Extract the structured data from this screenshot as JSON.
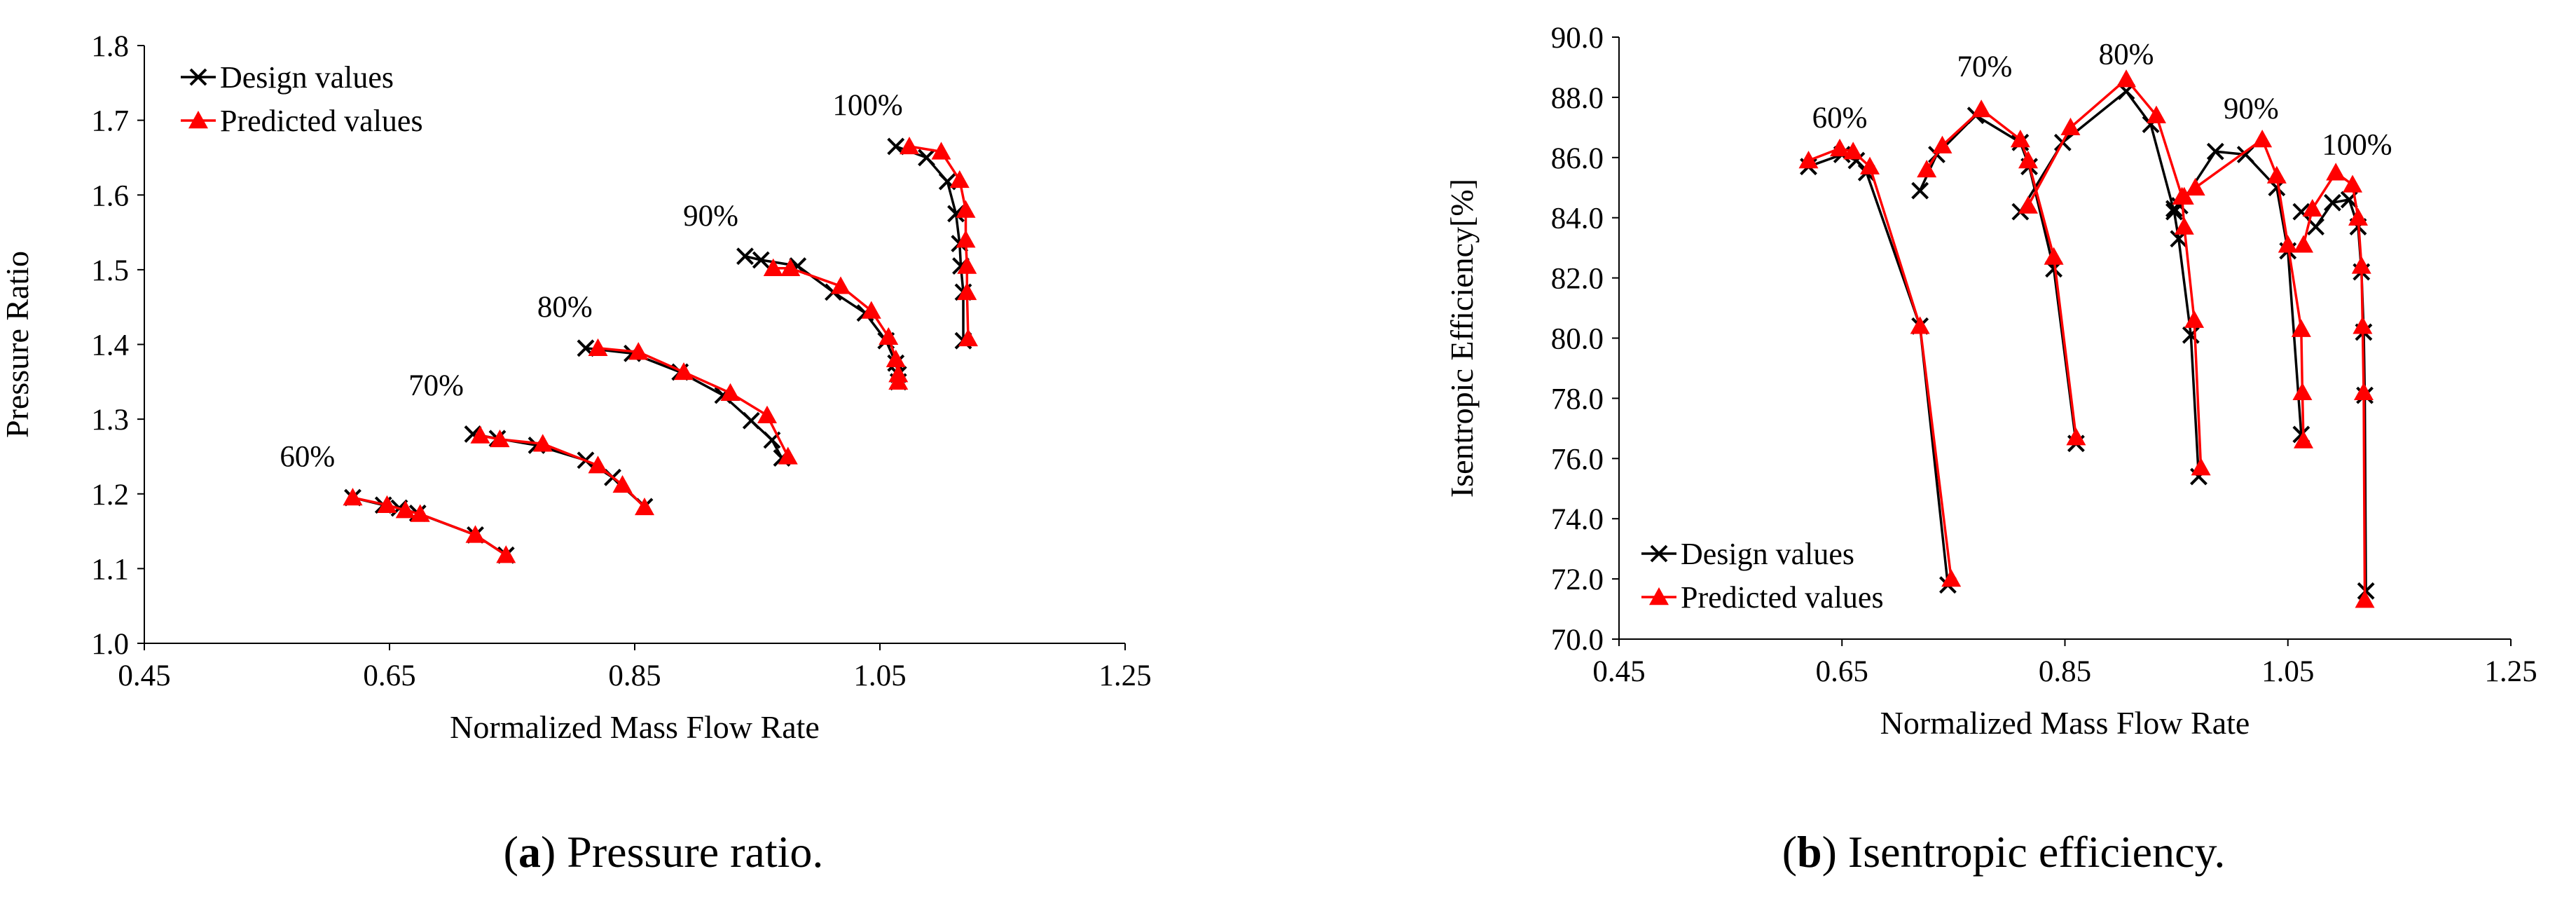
{
  "chart_data": [
    {
      "type": "line",
      "panel": "a",
      "caption_letter": "a",
      "caption_text": " Pressure ratio.",
      "xlabel": "Normalized Mass Flow Rate",
      "ylabel": "Pressure Ratio",
      "xlim": [
        0.45,
        1.25
      ],
      "ylim": [
        1.0,
        1.8
      ],
      "xticks": [
        "0.45",
        "0.65",
        "0.85",
        "1.05",
        "1.25"
      ],
      "yticks": [
        "1.0",
        "1.1",
        "1.2",
        "1.3",
        "1.4",
        "1.5",
        "1.6",
        "1.7",
        "1.8"
      ],
      "legend": [
        "Design values",
        "Predicted values"
      ],
      "speed_labels": [
        {
          "text": "60%",
          "x": 0.583,
          "y": 1.237
        },
        {
          "text": "70%",
          "x": 0.688,
          "y": 1.332
        },
        {
          "text": "80%",
          "x": 0.793,
          "y": 1.437
        },
        {
          "text": "90%",
          "x": 0.912,
          "y": 1.559
        },
        {
          "text": "100%",
          "x": 1.04,
          "y": 1.707
        }
      ],
      "series": [
        {
          "name": "Design values",
          "marker": "x",
          "color": "#000000",
          "lines": [
            [
              [
                0.62,
                1.195
              ],
              [
                0.645,
                1.185
              ],
              [
                0.658,
                1.181
              ],
              [
                0.673,
                1.174
              ],
              [
                0.72,
                1.145
              ],
              [
                0.745,
                1.118
              ]
            ],
            [
              [
                0.718,
                1.28
              ],
              [
                0.738,
                1.274
              ],
              [
                0.77,
                1.265
              ],
              [
                0.81,
                1.245
              ],
              [
                0.832,
                1.222
              ],
              [
                0.858,
                1.183
              ]
            ],
            [
              [
                0.81,
                1.395
              ],
              [
                0.848,
                1.388
              ],
              [
                0.887,
                1.363
              ],
              [
                0.922,
                1.332
              ],
              [
                0.945,
                1.298
              ],
              [
                0.962,
                1.272
              ],
              [
                0.97,
                1.248
              ]
            ],
            [
              [
                0.94,
                1.518
              ],
              [
                0.953,
                1.513
              ],
              [
                0.983,
                1.505
              ],
              [
                1.012,
                1.47
              ],
              [
                1.038,
                1.442
              ],
              [
                1.055,
                1.405
              ],
              [
                1.063,
                1.375
              ],
              [
                1.065,
                1.36
              ],
              [
                1.065,
                1.35
              ]
            ],
            [
              [
                1.063,
                1.665
              ],
              [
                1.088,
                1.65
              ],
              [
                1.105,
                1.618
              ],
              [
                1.112,
                1.575
              ],
              [
                1.115,
                1.535
              ],
              [
                1.116,
                1.505
              ],
              [
                1.118,
                1.47
              ],
              [
                1.118,
                1.405
              ]
            ]
          ]
        },
        {
          "name": "Predicted values",
          "marker": "triangle",
          "color": "#ff0000",
          "lines": [
            [
              [
                0.62,
                1.195
              ],
              [
                0.648,
                1.185
              ],
              [
                0.663,
                1.178
              ],
              [
                0.675,
                1.173
              ],
              [
                0.72,
                1.145
              ],
              [
                0.745,
                1.118
              ]
            ],
            [
              [
                0.724,
                1.278
              ],
              [
                0.74,
                1.273
              ],
              [
                0.775,
                1.267
              ],
              [
                0.82,
                1.238
              ],
              [
                0.84,
                1.212
              ],
              [
                0.858,
                1.182
              ]
            ],
            [
              [
                0.82,
                1.395
              ],
              [
                0.853,
                1.39
              ],
              [
                0.89,
                1.363
              ],
              [
                0.928,
                1.335
              ],
              [
                0.958,
                1.305
              ],
              [
                0.975,
                1.25
              ]
            ],
            [
              [
                0.963,
                1.502
              ],
              [
                0.977,
                1.502
              ],
              [
                1.018,
                1.478
              ],
              [
                1.043,
                1.445
              ],
              [
                1.057,
                1.41
              ],
              [
                1.063,
                1.38
              ],
              [
                1.065,
                1.36
              ],
              [
                1.065,
                1.35
              ]
            ],
            [
              [
                1.074,
                1.665
              ],
              [
                1.1,
                1.658
              ],
              [
                1.115,
                1.62
              ],
              [
                1.12,
                1.58
              ],
              [
                1.12,
                1.54
              ],
              [
                1.121,
                1.505
              ],
              [
                1.121,
                1.47
              ],
              [
                1.122,
                1.408
              ]
            ]
          ]
        }
      ]
    },
    {
      "type": "line",
      "panel": "b",
      "caption_letter": "b",
      "caption_text": " Isentropic efficiency.",
      "xlabel": "Normalized Mass Flow Rate",
      "ylabel": "Isentropic Efficiency[%]",
      "xlim": [
        0.45,
        1.25
      ],
      "ylim": [
        70.0,
        90.0
      ],
      "xticks": [
        "0.45",
        "0.65",
        "0.85",
        "1.05",
        "1.25"
      ],
      "yticks": [
        "70.0",
        "72.0",
        "74.0",
        "76.0",
        "78.0",
        "80.0",
        "82.0",
        "84.0",
        "86.0",
        "88.0",
        "90.0"
      ],
      "legend": [
        "Design values",
        "Predicted values"
      ],
      "speed_labels": [
        {
          "text": "60%",
          "x": 0.648,
          "y": 87.0
        },
        {
          "text": "70%",
          "x": 0.778,
          "y": 88.7
        },
        {
          "text": "80%",
          "x": 0.905,
          "y": 89.1
        },
        {
          "text": "90%",
          "x": 1.017,
          "y": 87.3
        },
        {
          "text": "100%",
          "x": 1.112,
          "y": 86.1
        }
      ],
      "series": [
        {
          "name": "Design values",
          "marker": "x",
          "color": "#000000",
          "lines": [
            [
              [
                0.62,
                85.7
              ],
              [
                0.65,
                86.1
              ],
              [
                0.663,
                85.9
              ],
              [
                0.672,
                85.5
              ],
              [
                0.72,
                80.4
              ],
              [
                0.745,
                71.8
              ]
            ],
            [
              [
                0.72,
                84.9
              ],
              [
                0.735,
                86.1
              ],
              [
                0.77,
                87.4
              ],
              [
                0.81,
                86.5
              ],
              [
                0.818,
                85.7
              ],
              [
                0.84,
                82.3
              ],
              [
                0.86,
                76.5
              ]
            ],
            [
              [
                0.81,
                84.2
              ],
              [
                0.848,
                86.5
              ],
              [
                0.905,
                88.2
              ],
              [
                0.927,
                87.1
              ],
              [
                0.948,
                84.2
              ],
              [
                0.952,
                83.3
              ],
              [
                0.963,
                80.1
              ],
              [
                0.97,
                75.4
              ]
            ],
            [
              [
                0.948,
                84.3
              ],
              [
                0.953,
                84.4
              ],
              [
                0.985,
                86.2
              ],
              [
                1.012,
                86.1
              ],
              [
                1.04,
                85.0
              ],
              [
                1.05,
                82.9
              ],
              [
                1.062,
                76.8
              ]
            ],
            [
              [
                1.062,
                84.2
              ],
              [
                1.075,
                83.7
              ],
              [
                1.09,
                84.5
              ],
              [
                1.105,
                84.6
              ],
              [
                1.113,
                83.7
              ],
              [
                1.116,
                82.2
              ],
              [
                1.118,
                80.2
              ],
              [
                1.119,
                78.1
              ],
              [
                1.12,
                71.6
              ]
            ]
          ]
        },
        {
          "name": "Predicted values",
          "marker": "triangle",
          "color": "#ff0000",
          "lines": [
            [
              [
                0.62,
                85.9
              ],
              [
                0.648,
                86.3
              ],
              [
                0.66,
                86.2
              ],
              [
                0.675,
                85.7
              ],
              [
                0.72,
                80.4
              ],
              [
                0.748,
                72.0
              ]
            ],
            [
              [
                0.726,
                85.6
              ],
              [
                0.74,
                86.4
              ],
              [
                0.775,
                87.6
              ],
              [
                0.81,
                86.6
              ],
              [
                0.817,
                85.9
              ],
              [
                0.84,
                82.7
              ],
              [
                0.86,
                76.7
              ]
            ],
            [
              [
                0.817,
                84.4
              ],
              [
                0.855,
                87.0
              ],
              [
                0.905,
                88.6
              ],
              [
                0.932,
                87.4
              ],
              [
                0.955,
                84.7
              ],
              [
                0.957,
                83.7
              ],
              [
                0.966,
                80.6
              ],
              [
                0.972,
                75.7
              ]
            ],
            [
              [
                0.957,
                84.7
              ],
              [
                0.967,
                85.0
              ],
              [
                1.027,
                86.6
              ],
              [
                1.04,
                85.4
              ],
              [
                1.05,
                83.1
              ],
              [
                1.062,
                80.3
              ],
              [
                1.063,
                78.2
              ],
              [
                1.064,
                76.6
              ]
            ],
            [
              [
                1.064,
                83.1
              ],
              [
                1.072,
                84.3
              ],
              [
                1.093,
                85.5
              ],
              [
                1.108,
                85.1
              ],
              [
                1.113,
                84.0
              ],
              [
                1.116,
                82.4
              ],
              [
                1.117,
                80.4
              ],
              [
                1.118,
                78.2
              ],
              [
                1.119,
                71.3
              ]
            ]
          ]
        }
      ]
    }
  ]
}
